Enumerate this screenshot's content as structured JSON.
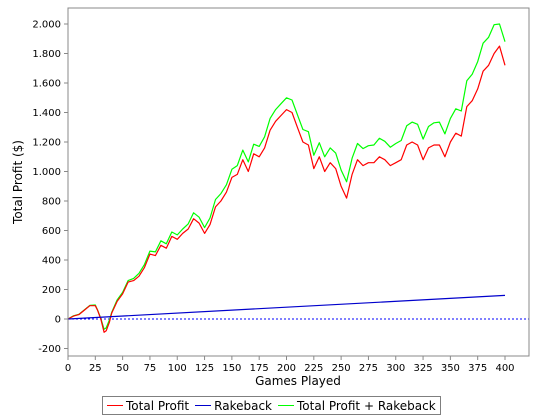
{
  "chart_data": {
    "type": "line",
    "title": "",
    "xlabel": "Games Played",
    "ylabel": "Total Profit ($)",
    "xlim": [
      0,
      410
    ],
    "ylim": [
      -200,
      2020
    ],
    "grid": false,
    "legend_position": "bottom",
    "x_ticks": [
      0,
      25,
      50,
      75,
      100,
      125,
      150,
      175,
      200,
      225,
      250,
      275,
      300,
      325,
      350,
      375,
      400
    ],
    "y_ticks": [
      {
        "value": -200,
        "label": "-200"
      },
      {
        "value": 0,
        "label": "0"
      },
      {
        "value": 200,
        "label": "200"
      },
      {
        "value": 400,
        "label": "400"
      },
      {
        "value": 600,
        "label": "600"
      },
      {
        "value": 800,
        "label": "800"
      },
      {
        "value": 1000,
        "label": "1.000"
      },
      {
        "value": 1200,
        "label": "1.200"
      },
      {
        "value": 1400,
        "label": "1.400"
      },
      {
        "value": 1600,
        "label": "1.600"
      },
      {
        "value": 1800,
        "label": "1.800"
      },
      {
        "value": 2000,
        "label": "2.000"
      }
    ],
    "zero_line": {
      "value": 0,
      "color": "#0000ff",
      "style": "dashed"
    },
    "series": [
      {
        "name": "Total Profit",
        "color": "#ff0000",
        "x": [
          0,
          5,
          10,
          15,
          20,
          25,
          27,
          30,
          33,
          35,
          38,
          40,
          45,
          50,
          55,
          60,
          65,
          70,
          75,
          80,
          85,
          90,
          95,
          100,
          105,
          110,
          115,
          120,
          125,
          130,
          135,
          140,
          145,
          150,
          155,
          160,
          165,
          170,
          175,
          180,
          185,
          190,
          195,
          200,
          205,
          210,
          215,
          220,
          225,
          230,
          235,
          240,
          245,
          250,
          255,
          260,
          265,
          270,
          275,
          280,
          285,
          290,
          295,
          300,
          305,
          310,
          315,
          320,
          325,
          330,
          335,
          340,
          345,
          350,
          355,
          360,
          365,
          370,
          375,
          380,
          385,
          390,
          395,
          400
        ],
        "values": [
          0,
          20,
          30,
          60,
          90,
          90,
          60,
          0,
          -90,
          -80,
          -20,
          40,
          120,
          170,
          250,
          260,
          290,
          350,
          440,
          430,
          500,
          480,
          560,
          540,
          580,
          610,
          680,
          650,
          580,
          640,
          760,
          800,
          860,
          960,
          980,
          1080,
          1000,
          1120,
          1100,
          1160,
          1280,
          1340,
          1380,
          1420,
          1400,
          1300,
          1200,
          1180,
          1020,
          1100,
          1000,
          1060,
          1020,
          900,
          820,
          980,
          1080,
          1040,
          1060,
          1060,
          1100,
          1080,
          1040,
          1060,
          1080,
          1180,
          1200,
          1180,
          1080,
          1160,
          1180,
          1180,
          1100,
          1200,
          1260,
          1240,
          1440,
          1480,
          1560,
          1680,
          1720,
          1800,
          1850,
          1720
        ]
      },
      {
        "name": "Rakeback",
        "color": "#0000cc",
        "x": [
          0,
          400
        ],
        "values": [
          0,
          160
        ]
      },
      {
        "name": "Total Profit + Rakeback",
        "color": "#00ff00",
        "x": [
          0,
          5,
          10,
          15,
          20,
          25,
          27,
          30,
          33,
          35,
          38,
          40,
          45,
          50,
          55,
          60,
          65,
          70,
          75,
          80,
          85,
          90,
          95,
          100,
          105,
          110,
          115,
          120,
          125,
          130,
          135,
          140,
          145,
          150,
          155,
          160,
          165,
          170,
          175,
          180,
          185,
          190,
          195,
          200,
          205,
          210,
          215,
          220,
          225,
          230,
          235,
          240,
          245,
          250,
          255,
          260,
          265,
          270,
          275,
          280,
          285,
          290,
          295,
          300,
          305,
          310,
          315,
          320,
          325,
          330,
          335,
          340,
          345,
          350,
          355,
          360,
          365,
          370,
          375,
          380,
          385,
          390,
          395,
          400
        ],
        "values": [
          0,
          22,
          32,
          62,
          92,
          95,
          62,
          5,
          -70,
          -60,
          -5,
          45,
          130,
          180,
          260,
          275,
          310,
          370,
          460,
          455,
          530,
          510,
          590,
          570,
          610,
          645,
          720,
          690,
          620,
          685,
          810,
          850,
          910,
          1015,
          1040,
          1145,
          1065,
          1185,
          1170,
          1235,
          1360,
          1420,
          1460,
          1500,
          1485,
          1385,
          1285,
          1270,
          1110,
          1195,
          1100,
          1160,
          1125,
          1010,
          930,
          1090,
          1190,
          1155,
          1175,
          1180,
          1225,
          1205,
          1165,
          1190,
          1210,
          1310,
          1335,
          1320,
          1220,
          1305,
          1330,
          1335,
          1255,
          1360,
          1425,
          1410,
          1615,
          1660,
          1745,
          1870,
          1910,
          1995,
          2000,
          1880
        ]
      }
    ]
  }
}
